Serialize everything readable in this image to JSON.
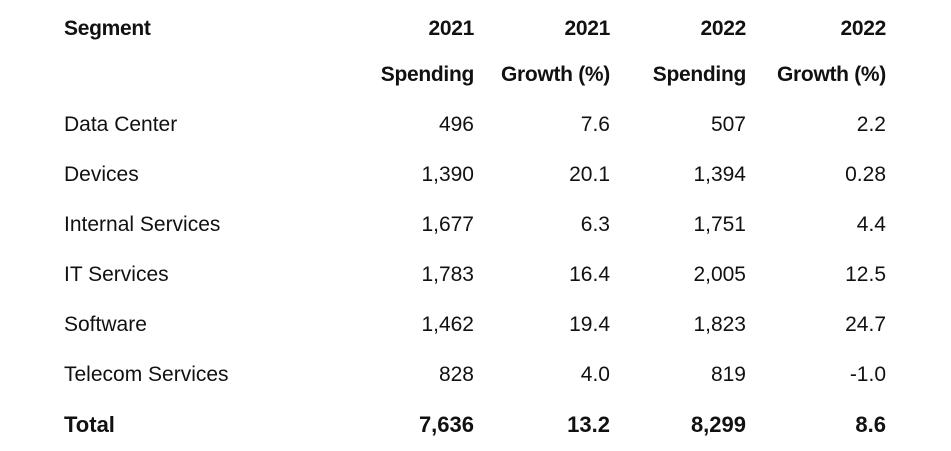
{
  "chart_data": {
    "type": "table",
    "header_row_1": [
      "Segment",
      "2021",
      "2021",
      "2022",
      "2022"
    ],
    "header_row_2": [
      "",
      "Spending",
      "Growth (%)",
      "Spending",
      "Growth (%)"
    ],
    "rows": [
      {
        "segment": "Data Center",
        "spend_2021": "496",
        "growth_2021": "7.6",
        "spend_2022": "507",
        "growth_2022": "2.2"
      },
      {
        "segment": "Devices",
        "spend_2021": "1,390",
        "growth_2021": "20.1",
        "spend_2022": "1,394",
        "growth_2022": "0.28"
      },
      {
        "segment": "Internal Services",
        "spend_2021": "1,677",
        "growth_2021": "6.3",
        "spend_2022": "1,751",
        "growth_2022": "4.4"
      },
      {
        "segment": "IT Services",
        "spend_2021": "1,783",
        "growth_2021": "16.4",
        "spend_2022": "2,005",
        "growth_2022": "12.5"
      },
      {
        "segment": "Software",
        "spend_2021": "1,462",
        "growth_2021": "19.4",
        "spend_2022": "1,823",
        "growth_2022": "24.7"
      },
      {
        "segment": "Telecom Services",
        "spend_2021": "828",
        "growth_2021": "4.0",
        "spend_2022": "819",
        "growth_2022": "-1.0"
      }
    ],
    "total": {
      "segment": "Total",
      "spend_2021": "7,636",
      "growth_2021": "13.2",
      "spend_2022": "8,299",
      "growth_2022": "8.6"
    }
  }
}
